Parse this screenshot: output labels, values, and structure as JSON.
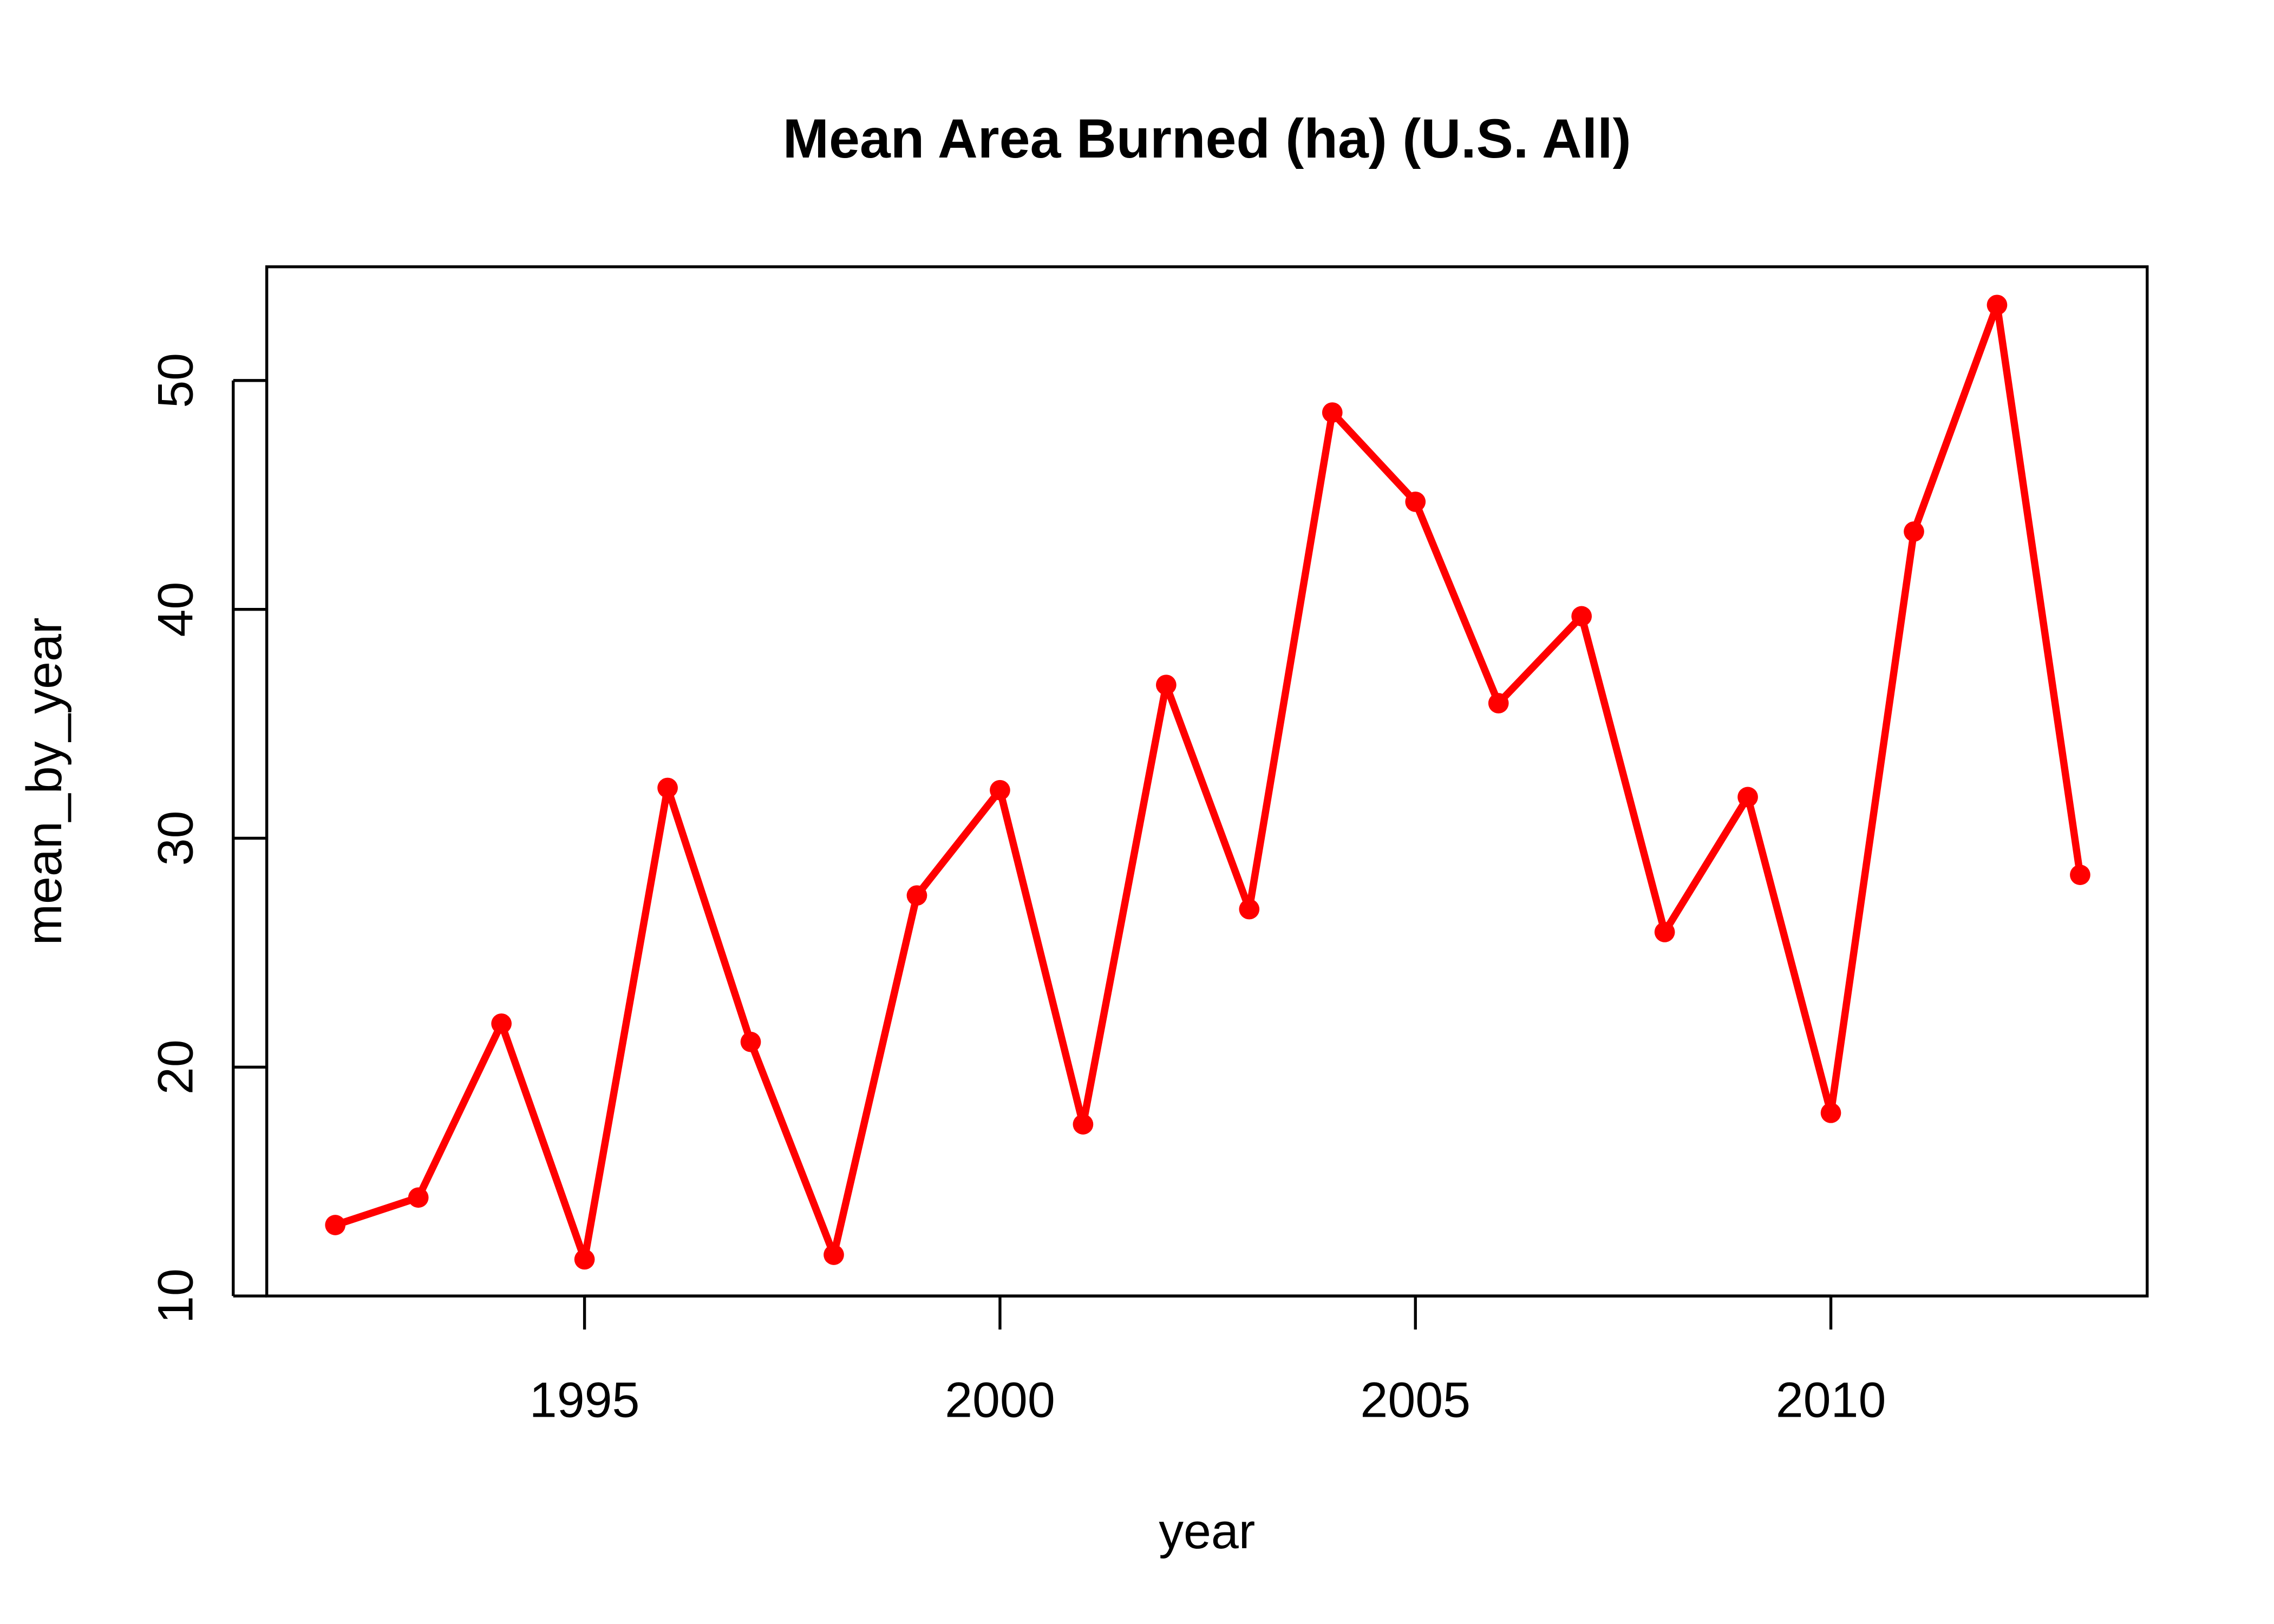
{
  "chart_data": {
    "type": "line",
    "title": "Mean Area Burned (ha) (U.S. All)",
    "xlabel": "year",
    "ylabel": "mean_by_year",
    "x": [
      1992,
      1993,
      1994,
      1995,
      1996,
      1997,
      1998,
      1999,
      2000,
      2001,
      2002,
      2003,
      2004,
      2005,
      2006,
      2007,
      2008,
      2009,
      2010,
      2011,
      2012,
      2013
    ],
    "series": [
      {
        "name": "mean_by_year",
        "color": "#ff0000",
        "values": [
          13.1,
          14.3,
          21.9,
          11.6,
          32.2,
          21.1,
          11.8,
          27.5,
          32.1,
          17.5,
          36.7,
          26.9,
          48.6,
          44.7,
          35.9,
          39.7,
          25.9,
          31.8,
          18.0,
          43.4,
          53.3,
          28.4
        ]
      }
    ],
    "xlim": [
      1991.2,
      2013.8
    ],
    "ylim": [
      10,
      54.9
    ],
    "xticks": [
      "1995",
      "2000",
      "2005",
      "2010"
    ],
    "yticks": [
      "10",
      "20",
      "30",
      "40",
      "50"
    ],
    "grid": false
  }
}
